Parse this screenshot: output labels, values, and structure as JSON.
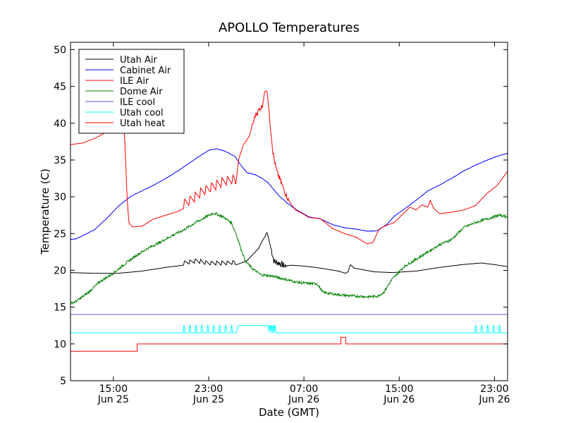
{
  "chart_data": {
    "type": "line",
    "title": "APOLLO Temperatures",
    "xlabel": "Date (GMT)",
    "ylabel": "Temperature (C)",
    "ylim": [
      5,
      51
    ],
    "xlim_hours": [
      0,
      36.7
    ],
    "yticks": [
      5,
      10,
      15,
      20,
      25,
      30,
      35,
      40,
      45,
      50
    ],
    "xticks": [
      {
        "hour": 3.6,
        "time": "15:00",
        "date": "Jun 25"
      },
      {
        "hour": 11.6,
        "time": "23:00",
        "date": "Jun 25"
      },
      {
        "hour": 19.6,
        "time": "07:00",
        "date": "Jun 26"
      },
      {
        "hour": 27.6,
        "time": "15:00",
        "date": "Jun 26"
      },
      {
        "hour": 35.6,
        "time": "23:00",
        "date": "Jun 26"
      }
    ],
    "legend_position": "top-left",
    "series": [
      {
        "name": "Utah Air",
        "color": "#000000",
        "points": [
          [
            0,
            19.7
          ],
          [
            2,
            19.6
          ],
          [
            4,
            19.6
          ],
          [
            6,
            19.9
          ],
          [
            8,
            20.4
          ],
          [
            9.5,
            20.7
          ],
          [
            10.6,
            21.0
          ],
          [
            11.5,
            20.7
          ],
          [
            13,
            20.7
          ],
          [
            14,
            20.8
          ],
          [
            14.8,
            21.3
          ],
          [
            15.4,
            22.3
          ],
          [
            15.8,
            23.0
          ],
          [
            16.1,
            24.0
          ],
          [
            16.3,
            24.5
          ],
          [
            16.5,
            25.2
          ],
          [
            16.8,
            23.2
          ],
          [
            17.1,
            21.2
          ],
          [
            17.5,
            21.0
          ],
          [
            18.0,
            20.6
          ],
          [
            18.5,
            20.7
          ],
          [
            19.5,
            20.6
          ],
          [
            21,
            20.3
          ],
          [
            22.5,
            19.9
          ],
          [
            23.1,
            19.6
          ],
          [
            23.3,
            19.8
          ],
          [
            23.5,
            20.8
          ],
          [
            23.8,
            20.3
          ],
          [
            24.5,
            20.1
          ],
          [
            25.5,
            19.8
          ],
          [
            27,
            19.7
          ],
          [
            29,
            19.9
          ],
          [
            31,
            20.4
          ],
          [
            33,
            20.8
          ],
          [
            34.5,
            21.0
          ],
          [
            35.5,
            20.8
          ],
          [
            36.7,
            20.5
          ]
        ],
        "spikes": {
          "start": 9.5,
          "end": 13.8,
          "step": 0.45,
          "amp": 0.6
        }
      },
      {
        "name": "Cabinet Air",
        "color": "#0000ff",
        "points": [
          [
            0,
            24.2
          ],
          [
            0.5,
            24.3
          ],
          [
            2,
            25.5
          ],
          [
            3,
            27.0
          ],
          [
            4,
            28.7
          ],
          [
            5,
            30.0
          ],
          [
            6,
            30.8
          ],
          [
            7,
            31.6
          ],
          [
            8,
            32.5
          ],
          [
            9,
            33.5
          ],
          [
            10,
            34.6
          ],
          [
            10.8,
            35.5
          ],
          [
            11.7,
            36.4
          ],
          [
            12.3,
            36.5
          ],
          [
            13,
            36.2
          ],
          [
            13.8,
            35.5
          ],
          [
            14.3,
            34.3
          ],
          [
            14.8,
            33.3
          ],
          [
            15.5,
            33.0
          ],
          [
            16.1,
            32.5
          ],
          [
            16.6,
            31.9
          ],
          [
            17.1,
            30.9
          ],
          [
            17.6,
            30.0
          ],
          [
            18.3,
            29.0
          ],
          [
            19,
            28.2
          ],
          [
            20,
            27.3
          ],
          [
            21,
            27.0
          ],
          [
            22,
            26.2
          ],
          [
            23,
            25.8
          ],
          [
            24,
            25.6
          ],
          [
            25,
            25.3
          ],
          [
            25.8,
            25.4
          ],
          [
            26.6,
            26.3
          ],
          [
            27.2,
            27.4
          ],
          [
            28,
            28.3
          ],
          [
            29,
            29.5
          ],
          [
            30,
            30.8
          ],
          [
            31,
            31.6
          ],
          [
            32,
            32.5
          ],
          [
            33,
            33.5
          ],
          [
            34,
            34.3
          ],
          [
            35,
            35.0
          ],
          [
            36,
            35.6
          ],
          [
            36.7,
            35.9
          ]
        ]
      },
      {
        "name": "ILE Air",
        "color": "#ff0000",
        "points": [
          [
            0,
            37.1
          ],
          [
            1,
            37.3
          ],
          [
            2,
            37.9
          ],
          [
            3,
            38.8
          ],
          [
            4,
            39.7
          ],
          [
            4.4,
            40.0
          ],
          [
            4.55,
            38.0
          ],
          [
            4.75,
            30.0
          ],
          [
            4.9,
            26.5
          ],
          [
            5.2,
            25.9
          ],
          [
            6,
            26.0
          ],
          [
            7,
            27.0
          ],
          [
            8,
            27.5
          ],
          [
            9,
            28.0
          ],
          [
            10,
            28.8
          ],
          [
            11,
            30.0
          ],
          [
            12,
            30.8
          ],
          [
            13,
            31.5
          ],
          [
            13.9,
            31.8
          ],
          [
            14.1,
            35.0
          ],
          [
            14.5,
            37.0
          ],
          [
            15,
            38.2
          ],
          [
            15.5,
            41.0
          ],
          [
            15.9,
            42.0
          ],
          [
            16.1,
            42.3
          ],
          [
            16.3,
            44.3
          ],
          [
            16.5,
            44.4
          ],
          [
            16.7,
            41.0
          ],
          [
            17.0,
            36.0
          ],
          [
            17.3,
            33.5
          ],
          [
            17.8,
            31.5
          ],
          [
            18.3,
            29.5
          ],
          [
            18.9,
            28.2
          ],
          [
            19.5,
            27.7
          ],
          [
            20.0,
            27.2
          ],
          [
            21,
            27.0
          ],
          [
            22,
            25.7
          ],
          [
            23,
            25.0
          ],
          [
            24,
            24.5
          ],
          [
            24.9,
            23.6
          ],
          [
            25.4,
            23.8
          ],
          [
            25.9,
            25.6
          ],
          [
            26.5,
            26.1
          ],
          [
            27.2,
            26.5
          ],
          [
            27.8,
            27.5
          ],
          [
            28.5,
            28.6
          ],
          [
            29.0,
            28.2
          ],
          [
            29.5,
            28.9
          ],
          [
            30.0,
            28.6
          ],
          [
            30.2,
            29.5
          ],
          [
            30.5,
            28.4
          ],
          [
            31,
            27.7
          ],
          [
            32,
            27.9
          ],
          [
            33,
            28.2
          ],
          [
            34,
            28.8
          ],
          [
            35,
            30.5
          ],
          [
            35.8,
            31.5
          ],
          [
            36.4,
            32.8
          ],
          [
            36.7,
            33.5
          ]
        ],
        "spikes": {
          "start": 9.5,
          "end": 13.8,
          "step": 0.45,
          "amp": 1.3
        }
      },
      {
        "name": "Dome Air",
        "color": "#008000",
        "points": [
          [
            0,
            15.5
          ],
          [
            0.5,
            15.8
          ],
          [
            1.5,
            17.0
          ],
          [
            2.5,
            18.5
          ],
          [
            3.5,
            19.5
          ],
          [
            4.5,
            20.8
          ],
          [
            5.5,
            22.0
          ],
          [
            6.5,
            23.0
          ],
          [
            7.5,
            23.8
          ],
          [
            8.5,
            24.7
          ],
          [
            9.5,
            25.5
          ],
          [
            10.5,
            26.5
          ],
          [
            11.3,
            27.2
          ],
          [
            12,
            27.8
          ],
          [
            12.8,
            27.3
          ],
          [
            13.5,
            26.5
          ],
          [
            13.9,
            25.0
          ],
          [
            14.3,
            23.0
          ],
          [
            14.7,
            21.2
          ],
          [
            15.3,
            20.2
          ],
          [
            16.0,
            19.4
          ],
          [
            17,
            19.2
          ],
          [
            18,
            18.8
          ],
          [
            19,
            18.4
          ],
          [
            20,
            18.2
          ],
          [
            20.7,
            18.2
          ],
          [
            21.2,
            17.0
          ],
          [
            22,
            16.8
          ],
          [
            23,
            16.6
          ],
          [
            24,
            16.5
          ],
          [
            25,
            16.4
          ],
          [
            25.8,
            16.5
          ],
          [
            26.3,
            17.0
          ],
          [
            27,
            18.8
          ],
          [
            28,
            20.5
          ],
          [
            29,
            21.5
          ],
          [
            30,
            22.5
          ],
          [
            31,
            23.5
          ],
          [
            32,
            24.2
          ],
          [
            33,
            25.8
          ],
          [
            34,
            26.5
          ],
          [
            35,
            27.0
          ],
          [
            36,
            27.5
          ],
          [
            36.7,
            27.3
          ]
        ]
      },
      {
        "name": "ILE cool",
        "color": "#6a5acd",
        "points": [
          [
            0,
            14.0
          ],
          [
            36.7,
            14.0
          ]
        ]
      },
      {
        "name": "Utah cool",
        "color": "#00ffff",
        "points": [
          [
            0,
            11.5
          ],
          [
            9.3,
            11.5
          ],
          [
            13.9,
            11.5
          ],
          [
            14.1,
            12.5
          ],
          [
            16.5,
            12.5
          ],
          [
            16.7,
            11.5
          ],
          [
            36.7,
            11.5
          ]
        ],
        "pulses": [
          9.5,
          10.0,
          10.5,
          11.0,
          11.5,
          12.0,
          12.5,
          13.0,
          13.5,
          16.55,
          16.7,
          16.85,
          17.0,
          17.15,
          34.0,
          34.5,
          35.0,
          35.5,
          36.0
        ]
      },
      {
        "name": "Utah heat",
        "color": "#ff0000",
        "points": [
          [
            0,
            9.0
          ],
          [
            5.6,
            9.0
          ],
          [
            5.6,
            10.0
          ],
          [
            22.7,
            10.0
          ],
          [
            22.7,
            10.9
          ],
          [
            23.1,
            10.9
          ],
          [
            23.1,
            10.0
          ],
          [
            36.7,
            10.0
          ]
        ]
      }
    ]
  }
}
